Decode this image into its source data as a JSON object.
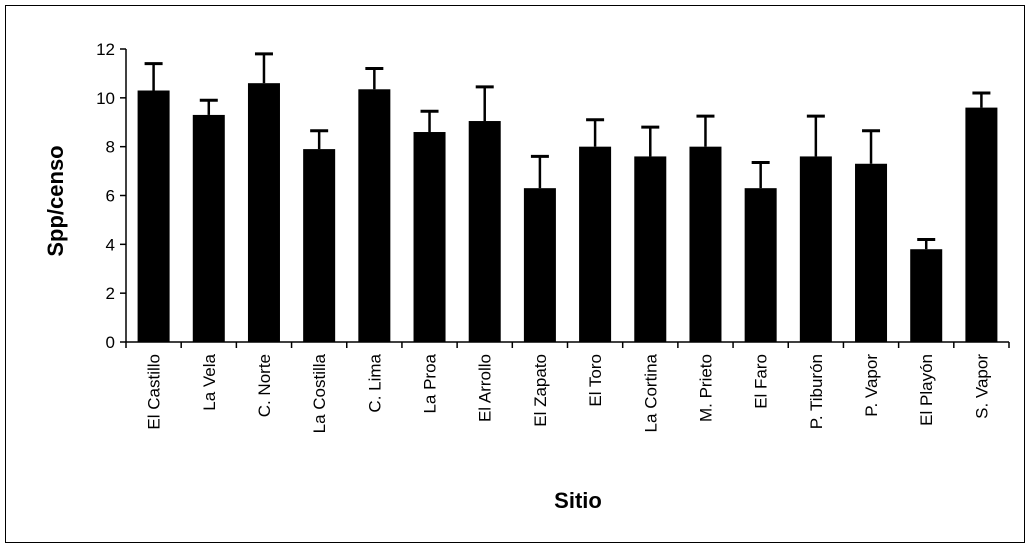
{
  "chart_data": {
    "type": "bar",
    "title": "",
    "xlabel": "Sitio",
    "ylabel": "Spp/censo",
    "ylim": [
      0,
      12
    ],
    "yticks": [
      0,
      2,
      4,
      6,
      8,
      10,
      12
    ],
    "grid": false,
    "legend": "none",
    "bar_color": "#000000",
    "error_bars": "upper only",
    "categories": [
      "El Castillo",
      "La Vela",
      "C. Norte",
      "La Costilla",
      "C. Lima",
      "La Proa",
      "El Arrollo",
      "El Zapato",
      "El Toro",
      "La Cortina",
      "M. Prieto",
      "El Faro",
      "P. Tiburón",
      "P. Vapor",
      "El Playón",
      "S. Vapor"
    ],
    "values": [
      10.3,
      9.3,
      10.6,
      7.9,
      10.35,
      8.6,
      9.05,
      6.3,
      8.0,
      7.6,
      8.0,
      6.3,
      7.6,
      7.3,
      3.8,
      9.6
    ],
    "error_upper": [
      1.1,
      0.6,
      1.2,
      0.75,
      0.85,
      0.85,
      1.4,
      1.3,
      1.1,
      1.2,
      1.25,
      1.05,
      1.65,
      1.35,
      0.4,
      0.6
    ]
  }
}
